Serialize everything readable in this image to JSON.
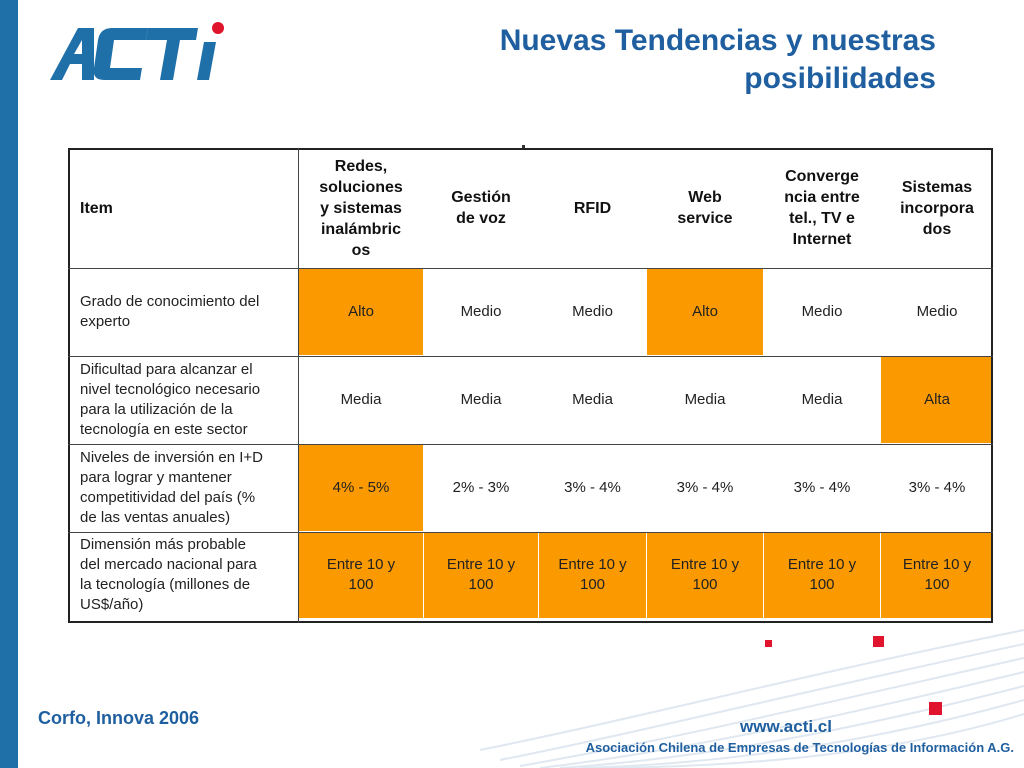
{
  "logo": {
    "text": "ACTI",
    "brand_color": "#1f6fa8",
    "dot_color": "#e0142c"
  },
  "title": {
    "line1": "Nuevas Tendencias y nuestras",
    "line2": "posibilidades"
  },
  "table": {
    "header": {
      "item": "Item",
      "columns": [
        [
          "Redes,",
          "soluciones",
          "y sistemas",
          "inalámbric",
          "os"
        ],
        [
          "Gestión",
          "de voz"
        ],
        [
          "RFID"
        ],
        [
          "Web",
          "service"
        ],
        [
          "Converge",
          "ncia entre",
          "tel., TV e",
          "Internet"
        ],
        [
          "Sistemas",
          "incorpora",
          "dos"
        ]
      ]
    },
    "rows": [
      {
        "label": [
          "Grado de conocimiento del",
          "experto"
        ],
        "cells": [
          [
            "Alto"
          ],
          [
            "Medio"
          ],
          [
            "Medio"
          ],
          [
            "Alto"
          ],
          [
            "Medio"
          ],
          [
            "Medio"
          ]
        ],
        "highlight": [
          true,
          false,
          false,
          true,
          false,
          false
        ]
      },
      {
        "label": [
          "Dificultad para alcanzar el",
          "nivel tecnológico necesario",
          "para la utilización de la",
          "tecnología en este sector"
        ],
        "cells": [
          [
            "Media"
          ],
          [
            "Media"
          ],
          [
            "Media"
          ],
          [
            "Media"
          ],
          [
            "Media"
          ],
          [
            "Alta"
          ]
        ],
        "highlight": [
          false,
          false,
          false,
          false,
          false,
          true
        ]
      },
      {
        "label": [
          "Niveles de inversión en I+D",
          "para lograr y mantener",
          "competitividad del país (%",
          "de las ventas anuales)"
        ],
        "cells": [
          [
            "4% - 5%"
          ],
          [
            "2% - 3%"
          ],
          [
            "3% - 4%"
          ],
          [
            "3% - 4%"
          ],
          [
            "3% - 4%"
          ],
          [
            "3% - 4%"
          ]
        ],
        "highlight": [
          true,
          false,
          false,
          false,
          false,
          false
        ]
      },
      {
        "label": [
          "Dimensión más probable",
          "del mercado nacional para",
          "la tecnología (millones de",
          "US$/año)"
        ],
        "cells": [
          [
            "Entre 10 y",
            "100"
          ],
          [
            "Entre 10 y",
            "100"
          ],
          [
            "Entre 10 y",
            "100"
          ],
          [
            "Entre 10 y",
            "100"
          ],
          [
            "Entre 10 y",
            "100"
          ],
          [
            "Entre 10 y",
            "100"
          ]
        ],
        "highlight": [
          true,
          true,
          true,
          true,
          true,
          true
        ]
      }
    ],
    "highlight_color": "#fa9a00"
  },
  "footer": {
    "source": "Corfo, Innova 2006",
    "url": "www.acti.cl",
    "association": "Asociación Chilena de Empresas de Tecnologías de Información A.G."
  },
  "colors": {
    "accent_blue": "#1f5fa0",
    "sidebar_blue": "#1f6fa8",
    "deco_red": "#e0142c"
  }
}
